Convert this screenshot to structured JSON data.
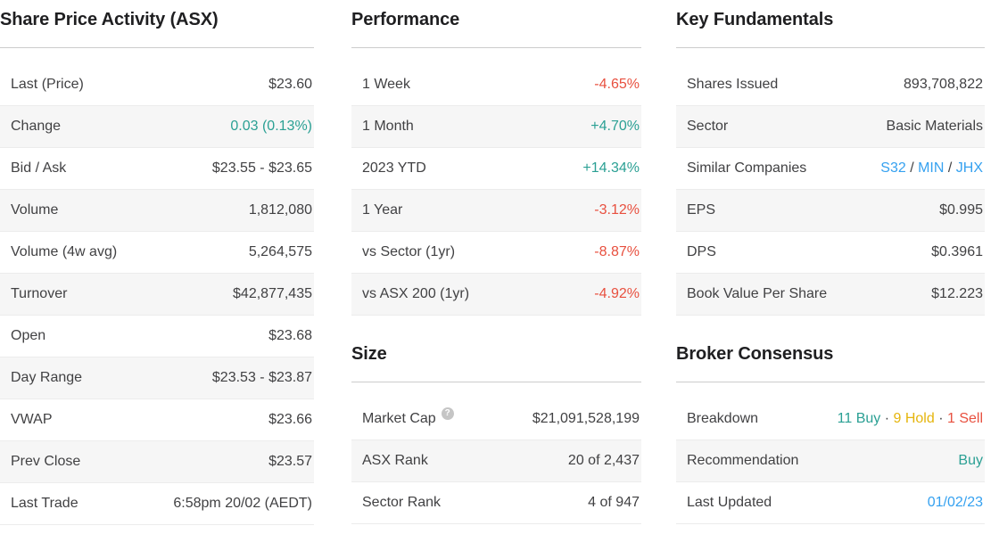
{
  "colors": {
    "positive": "#2ba094",
    "negative": "#e8503f",
    "link": "#35a1f0",
    "hold": "#e5b50d",
    "heading": "#1f1f21",
    "text": "#414143",
    "row_alt_bg": "#f6f6f6",
    "row_border": "#ececec",
    "divider": "#cccccc",
    "help_icon_bg": "#c5c5c5"
  },
  "icons": {
    "help_glyph": "?"
  },
  "sections": {
    "share_price_activity": {
      "title": "Share Price Activity (ASX)",
      "rows": [
        {
          "label": "Last (Price)",
          "value": "$23.60"
        },
        {
          "label": "Change",
          "value": "0.03 (0.13%)",
          "value_color": "positive"
        },
        {
          "label": "Bid / Ask",
          "value": "$23.55 - $23.65"
        },
        {
          "label": "Volume",
          "value": "1,812,080"
        },
        {
          "label": "Volume (4w avg)",
          "value": "5,264,575"
        },
        {
          "label": "Turnover",
          "value": "$42,877,435"
        },
        {
          "label": "Open",
          "value": "$23.68"
        },
        {
          "label": "Day Range",
          "value": "$23.53 - $23.87"
        },
        {
          "label": "VWAP",
          "value": "$23.66"
        },
        {
          "label": "Prev Close",
          "value": "$23.57"
        },
        {
          "label": "Last Trade",
          "value": "6:58pm 20/02 (AEDT)"
        }
      ]
    },
    "performance": {
      "title": "Performance",
      "rows": [
        {
          "label": "1 Week",
          "value": "-4.65%",
          "value_color": "negative"
        },
        {
          "label": "1 Month",
          "value": "+4.70%",
          "value_color": "positive"
        },
        {
          "label": "2023 YTD",
          "value": "+14.34%",
          "value_color": "positive"
        },
        {
          "label": "1 Year",
          "value": "-3.12%",
          "value_color": "negative"
        },
        {
          "label": "vs Sector (1yr)",
          "value": "-8.87%",
          "value_color": "negative"
        },
        {
          "label": "vs ASX 200 (1yr)",
          "value": "-4.92%",
          "value_color": "negative"
        }
      ]
    },
    "size": {
      "title": "Size",
      "rows": [
        {
          "label": "Market Cap",
          "help_icon": true,
          "value": "$21,091,528,199"
        },
        {
          "label": "ASX Rank",
          "value": "20 of 2,437"
        },
        {
          "label": "Sector Rank",
          "value": "4 of 947"
        }
      ]
    },
    "key_fundamentals": {
      "title": "Key Fundamentals",
      "rows": [
        {
          "label": "Shares Issued",
          "value": "893,708,822"
        },
        {
          "label": "Sector",
          "value": "Basic Materials"
        },
        {
          "label": "Similar Companies",
          "value": [
            {
              "text": "S32",
              "color": "link",
              "link": true,
              "name": "similar-company-s32-link"
            },
            {
              "text": " / "
            },
            {
              "text": "MIN",
              "color": "link",
              "link": true,
              "name": "similar-company-min-link"
            },
            {
              "text": " / "
            },
            {
              "text": "JHX",
              "color": "link",
              "link": true,
              "name": "similar-company-jhx-link"
            }
          ]
        },
        {
          "label": "EPS",
          "value": "$0.995"
        },
        {
          "label": "DPS",
          "value": "$0.3961"
        },
        {
          "label": "Book Value Per Share",
          "value": "$12.223"
        }
      ]
    },
    "broker_consensus": {
      "title": "Broker Consensus",
      "rows": [
        {
          "label": "Breakdown",
          "value": [
            {
              "text": "11 Buy",
              "color": "positive",
              "name": "breakdown-buy-count"
            },
            {
              "text": " · "
            },
            {
              "text": "9 Hold",
              "color": "hold",
              "name": "breakdown-hold-count"
            },
            {
              "text": " · "
            },
            {
              "text": "1 Sell",
              "color": "negative",
              "name": "breakdown-sell-count"
            }
          ]
        },
        {
          "label": "Recommendation",
          "value": "Buy",
          "value_color": "positive"
        },
        {
          "label": "Last Updated",
          "value": "01/02/23",
          "value_color": "link",
          "link": true
        }
      ]
    }
  }
}
